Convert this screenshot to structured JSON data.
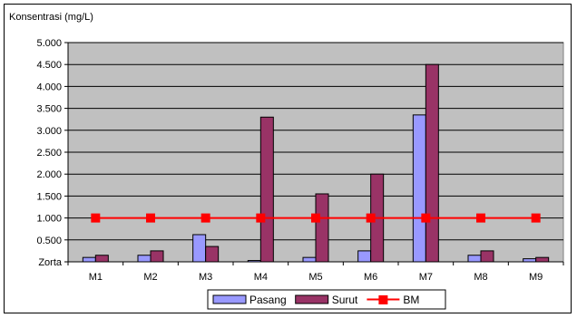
{
  "chart_data": {
    "type": "bar",
    "ylabel": "Konsentrasi (mg/L)",
    "categories": [
      "M1",
      "M2",
      "M3",
      "M4",
      "M5",
      "M6",
      "M7",
      "M8",
      "M9"
    ],
    "ylim": [
      0,
      5.0
    ],
    "yticks": [
      {
        "value": 0,
        "label": "Zorta"
      },
      {
        "value": 0.5,
        "label": "0.500"
      },
      {
        "value": 1.0,
        "label": "1.000"
      },
      {
        "value": 1.5,
        "label": "1.500"
      },
      {
        "value": 2.0,
        "label": "2.000"
      },
      {
        "value": 2.5,
        "label": "2.500"
      },
      {
        "value": 3.0,
        "label": "3.000"
      },
      {
        "value": 3.5,
        "label": "3.500"
      },
      {
        "value": 4.0,
        "label": "4.000"
      },
      {
        "value": 4.5,
        "label": "4.500"
      },
      {
        "value": 5.0,
        "label": "5.000"
      }
    ],
    "grid": true,
    "legend_position": "bottom",
    "series": [
      {
        "name": "Pasang",
        "kind": "bar",
        "color": "#9999ff",
        "values": [
          0.1,
          0.15,
          0.62,
          0.03,
          0.1,
          0.25,
          3.35,
          0.15,
          0.07
        ]
      },
      {
        "name": "Surut",
        "kind": "bar",
        "color": "#993366",
        "values": [
          0.15,
          0.25,
          0.35,
          3.3,
          1.55,
          2.0,
          4.5,
          0.25,
          0.1
        ]
      },
      {
        "name": "BM",
        "kind": "line",
        "color": "#ff0000",
        "values": [
          1.0,
          1.0,
          1.0,
          1.0,
          1.0,
          1.0,
          1.0,
          1.0,
          1.0
        ]
      }
    ],
    "plot_background": "#c0c0c0"
  }
}
